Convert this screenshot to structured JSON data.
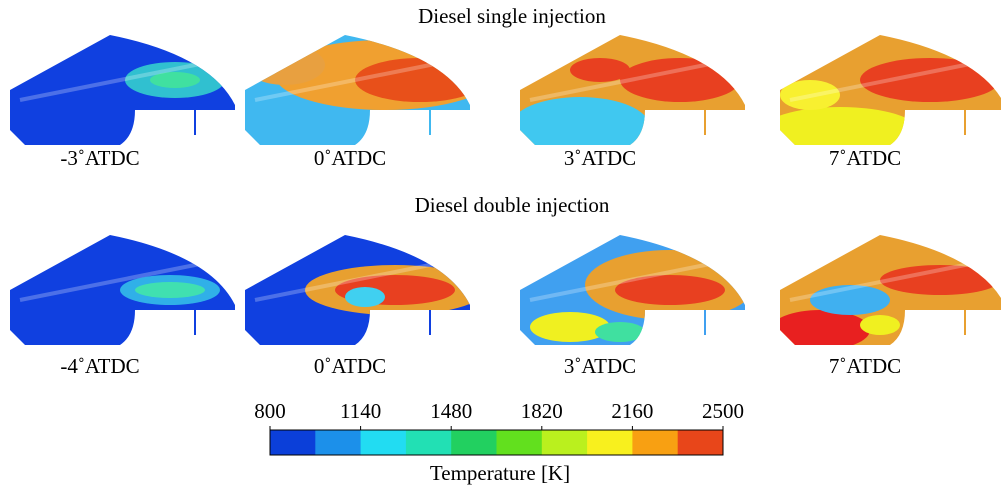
{
  "rows": [
    {
      "title": "Diesel single injection",
      "panels": [
        "-3˚ATDC",
        "0˚ATDC",
        "3˚ATDC",
        "7˚ATDC"
      ]
    },
    {
      "title": "Diesel double injection",
      "panels": [
        "-4˚ATDC",
        "0˚ATDC",
        "3˚ATDC",
        "7˚ATDC"
      ]
    }
  ],
  "colorbar": {
    "ticks": [
      800,
      1140,
      1480,
      1820,
      2160,
      2500
    ],
    "colors": [
      "#0b3fd9",
      "#1c90ea",
      "#22dcf2",
      "#22e0b4",
      "#22d060",
      "#62e01e",
      "#baf01e",
      "#f8f01e",
      "#f8a012",
      "#e8461a"
    ],
    "label": "Temperature [K]"
  }
}
